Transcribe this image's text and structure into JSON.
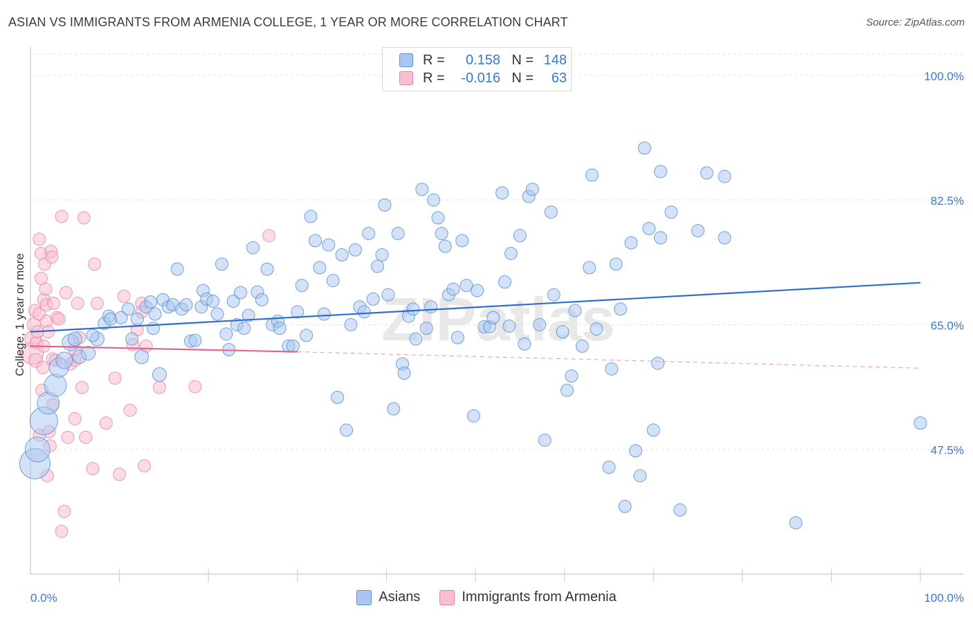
{
  "title": "ASIAN VS IMMIGRANTS FROM ARMENIA COLLEGE, 1 YEAR OR MORE CORRELATION CHART",
  "source": "Source: ZipAtlas.com",
  "watermark": "ZIPatlas",
  "colors": {
    "blue": "#5b8fd6",
    "blue_fill": "#a9c6f0",
    "blue_line": "#2f6fcc",
    "pink": "#e87fa3",
    "pink_fill": "#f7bfd0",
    "pink_line": "#e2658f",
    "tick_label": "#3a77cf",
    "grid": "#e3e3e3"
  },
  "legend": {
    "rows": [
      {
        "r_label": "R =",
        "r_value": "0.158",
        "n_label": "N =",
        "n_value": "148"
      },
      {
        "r_label": "R =",
        "r_value": "-0.016",
        "n_label": "N =",
        "n_value": "63"
      }
    ]
  },
  "chart_data": {
    "type": "scatter",
    "title": "ASIAN VS IMMIGRANTS FROM ARMENIA COLLEGE, 1 YEAR OR MORE CORRELATION CHART",
    "xlabel": "",
    "ylabel": "College, 1 year or more",
    "xlim": [
      0,
      100
    ],
    "ylim": [
      30,
      103
    ],
    "x_tick_labels": [
      "0.0%",
      "100.0%"
    ],
    "y_ticks": [
      47.5,
      65.0,
      82.5,
      100.0
    ],
    "y_tick_labels": [
      "47.5%",
      "65.0%",
      "82.5%",
      "100.0%"
    ],
    "grid": true,
    "legend_position": "top-center",
    "series": [
      {
        "name": "Asians",
        "R": 0.158,
        "N": 148,
        "trend": {
          "x": [
            0,
            100
          ],
          "y": [
            64.0,
            70.9
          ],
          "style": "solid"
        },
        "points": [
          [
            0.5,
            45.5,
            22
          ],
          [
            0.8,
            47.5,
            18
          ],
          [
            1.5,
            51.5,
            20
          ],
          [
            2.0,
            54.0,
            16
          ],
          [
            2.8,
            56.5,
            16
          ],
          [
            3.2,
            59.0,
            14
          ],
          [
            3.8,
            60.0,
            12
          ],
          [
            4.5,
            62.5,
            12
          ],
          [
            5.0,
            63.0,
            10
          ],
          [
            5.5,
            60.5,
            10
          ],
          [
            6.5,
            61.0,
            10
          ],
          [
            7.5,
            63.0,
            10
          ],
          [
            8.3,
            65.2,
            9
          ],
          [
            8.8,
            66.2,
            9
          ],
          [
            9.0,
            65.8,
            9
          ],
          [
            10.2,
            66.0,
            9
          ],
          [
            11.0,
            67.2,
            9
          ],
          [
            11.4,
            63.0,
            9
          ],
          [
            12.0,
            65.8,
            9
          ],
          [
            12.5,
            60.5,
            10
          ],
          [
            13.0,
            67.5,
            9
          ],
          [
            13.5,
            68.2,
            9
          ],
          [
            13.8,
            64.5,
            9
          ],
          [
            14.0,
            66.5,
            9
          ],
          [
            14.5,
            58.0,
            10
          ],
          [
            14.9,
            68.5,
            9
          ],
          [
            15.5,
            67.5,
            9
          ],
          [
            16.0,
            67.8,
            9
          ],
          [
            16.5,
            72.8,
            9
          ],
          [
            17.0,
            67.2,
            9
          ],
          [
            17.5,
            67.8,
            9
          ],
          [
            18.0,
            62.7,
            9
          ],
          [
            18.5,
            62.8,
            9
          ],
          [
            19.2,
            67.5,
            9
          ],
          [
            19.4,
            69.8,
            9
          ],
          [
            19.8,
            68.6,
            9
          ],
          [
            20.5,
            68.3,
            9
          ],
          [
            21.0,
            66.5,
            9
          ],
          [
            21.5,
            73.5,
            9
          ],
          [
            22.0,
            63.7,
            9
          ],
          [
            22.3,
            61.5,
            9
          ],
          [
            22.8,
            68.3,
            9
          ],
          [
            23.2,
            65.0,
            9
          ],
          [
            23.6,
            69.5,
            9
          ],
          [
            24.0,
            64.5,
            9
          ],
          [
            24.5,
            66.3,
            9
          ],
          [
            25.0,
            75.8,
            9
          ],
          [
            25.5,
            69.6,
            9
          ],
          [
            26.0,
            68.5,
            9
          ],
          [
            26.6,
            72.8,
            9
          ],
          [
            27.2,
            65.0,
            9
          ],
          [
            27.8,
            65.5,
            9
          ],
          [
            28.0,
            64.5,
            9
          ],
          [
            29.0,
            62.0,
            9
          ],
          [
            29.5,
            62.0,
            9
          ],
          [
            30.0,
            66.8,
            9
          ],
          [
            30.5,
            70.5,
            9
          ],
          [
            31.0,
            63.5,
            9
          ],
          [
            31.5,
            80.2,
            9
          ],
          [
            32.0,
            76.8,
            9
          ],
          [
            32.5,
            73.0,
            9
          ],
          [
            33.0,
            66.5,
            9
          ],
          [
            33.5,
            76.2,
            9
          ],
          [
            34.0,
            71.2,
            9
          ],
          [
            34.5,
            54.8,
            9
          ],
          [
            35.0,
            74.8,
            9
          ],
          [
            35.5,
            50.2,
            9
          ],
          [
            36.0,
            65.0,
            9
          ],
          [
            36.5,
            75.5,
            9
          ],
          [
            37.0,
            67.5,
            9
          ],
          [
            37.5,
            66.8,
            9
          ],
          [
            38.0,
            77.8,
            9
          ],
          [
            38.5,
            68.6,
            9
          ],
          [
            39.0,
            73.2,
            9
          ],
          [
            39.5,
            74.8,
            9
          ],
          [
            39.8,
            81.8,
            9
          ],
          [
            40.2,
            69.2,
            9
          ],
          [
            40.8,
            53.2,
            9
          ],
          [
            41.3,
            77.8,
            9
          ],
          [
            41.8,
            59.5,
            9
          ],
          [
            42.0,
            58.2,
            9
          ],
          [
            42.5,
            66.2,
            9
          ],
          [
            43.0,
            67.2,
            9
          ],
          [
            43.3,
            63.0,
            9
          ],
          [
            44.0,
            84.0,
            9
          ],
          [
            44.5,
            64.5,
            9
          ],
          [
            45.0,
            67.5,
            9
          ],
          [
            45.3,
            82.5,
            9
          ],
          [
            45.8,
            80.0,
            9
          ],
          [
            46.2,
            77.8,
            9
          ],
          [
            46.6,
            76.0,
            9
          ],
          [
            47.0,
            69.2,
            9
          ],
          [
            47.5,
            70.0,
            9
          ],
          [
            48.0,
            63.2,
            9
          ],
          [
            48.5,
            76.8,
            9
          ],
          [
            49.0,
            70.5,
            9
          ],
          [
            49.8,
            52.2,
            9
          ],
          [
            50.2,
            69.8,
            9
          ],
          [
            51.0,
            64.7,
            9
          ],
          [
            51.6,
            64.7,
            9
          ],
          [
            52.0,
            66.0,
            9
          ],
          [
            53.0,
            83.5,
            9
          ],
          [
            53.3,
            71.0,
            9
          ],
          [
            53.8,
            64.8,
            9
          ],
          [
            54.0,
            75.0,
            9
          ],
          [
            55.0,
            77.5,
            9
          ],
          [
            55.5,
            62.3,
            9
          ],
          [
            56.0,
            83.0,
            9
          ],
          [
            56.4,
            84.0,
            9
          ],
          [
            57.2,
            65.0,
            9
          ],
          [
            57.8,
            48.8,
            9
          ],
          [
            58.5,
            80.8,
            9
          ],
          [
            58.8,
            69.2,
            9
          ],
          [
            59.8,
            64.0,
            9
          ],
          [
            60.3,
            55.8,
            9
          ],
          [
            60.8,
            57.8,
            9
          ],
          [
            61.2,
            67.0,
            9
          ],
          [
            62.0,
            62.0,
            9
          ],
          [
            62.8,
            73.0,
            9
          ],
          [
            63.1,
            86.0,
            9
          ],
          [
            63.6,
            64.4,
            9
          ],
          [
            65.0,
            45.0,
            9
          ],
          [
            65.3,
            58.8,
            9
          ],
          [
            65.8,
            73.5,
            9
          ],
          [
            66.3,
            67.2,
            9
          ],
          [
            66.8,
            39.5,
            9
          ],
          [
            67.5,
            76.5,
            9
          ],
          [
            68.0,
            47.3,
            9
          ],
          [
            68.5,
            43.8,
            9
          ],
          [
            69.0,
            89.8,
            9
          ],
          [
            69.5,
            78.5,
            9
          ],
          [
            70.0,
            50.2,
            9
          ],
          [
            70.5,
            59.6,
            9
          ],
          [
            70.8,
            77.2,
            9
          ],
          [
            70.8,
            86.5,
            9
          ],
          [
            72.0,
            80.8,
            9
          ],
          [
            73.0,
            39.0,
            9
          ],
          [
            75.0,
            78.2,
            9
          ],
          [
            76.0,
            86.3,
            9
          ],
          [
            78.0,
            77.2,
            9
          ],
          [
            78.0,
            85.8,
            9
          ],
          [
            86.0,
            37.2,
            9
          ],
          [
            100.0,
            51.2,
            9
          ],
          [
            7.0,
            63.5,
            9
          ]
        ]
      },
      {
        "name": "Immigrants from Armenia",
        "R": -0.016,
        "N": 63,
        "trend": {
          "x": [
            0,
            30,
            100
          ],
          "y": [
            62.0,
            61.2,
            58.9
          ],
          "style": "solid-then-dashed"
        },
        "points": [
          [
            0.2,
            61.0,
            16
          ],
          [
            0.3,
            63.0,
            12
          ],
          [
            0.4,
            65.0,
            10
          ],
          [
            0.5,
            67.0,
            9
          ],
          [
            0.6,
            60.0,
            10
          ],
          [
            0.7,
            62.5,
            9
          ],
          [
            0.8,
            64.0,
            9
          ],
          [
            1.0,
            77.0,
            9
          ],
          [
            1.0,
            66.5,
            9
          ],
          [
            1.2,
            75.0,
            9
          ],
          [
            1.2,
            71.5,
            9
          ],
          [
            1.3,
            55.8,
            9
          ],
          [
            1.4,
            59.0,
            9
          ],
          [
            1.5,
            68.5,
            9
          ],
          [
            1.5,
            62.0,
            9
          ],
          [
            1.6,
            73.5,
            9
          ],
          [
            1.7,
            70.0,
            9
          ],
          [
            1.8,
            67.8,
            9
          ],
          [
            1.8,
            65.5,
            9
          ],
          [
            1.9,
            43.8,
            9
          ],
          [
            2.0,
            64.0,
            9
          ],
          [
            2.1,
            50.0,
            9
          ],
          [
            2.2,
            48.0,
            9
          ],
          [
            2.3,
            75.3,
            9
          ],
          [
            2.4,
            74.5,
            9
          ],
          [
            2.5,
            60.2,
            9
          ],
          [
            2.5,
            53.8,
            9
          ],
          [
            2.6,
            68.0,
            9
          ],
          [
            2.8,
            60.0,
            9
          ],
          [
            3.0,
            66.0,
            9
          ],
          [
            3.2,
            65.8,
            9
          ],
          [
            3.5,
            80.2,
            9
          ],
          [
            3.8,
            38.8,
            9
          ],
          [
            3.5,
            36.0,
            9
          ],
          [
            4.0,
            69.5,
            9
          ],
          [
            4.2,
            49.2,
            9
          ],
          [
            4.5,
            59.5,
            9
          ],
          [
            5.0,
            60.0,
            9
          ],
          [
            5.0,
            61.5,
            9
          ],
          [
            5.3,
            68.0,
            9
          ],
          [
            5.5,
            63.2,
            9
          ],
          [
            5.8,
            56.2,
            9
          ],
          [
            6.0,
            80.0,
            9
          ],
          [
            6.2,
            49.2,
            9
          ],
          [
            7.2,
            73.5,
            9
          ],
          [
            7.5,
            68.0,
            9
          ],
          [
            7.0,
            44.8,
            9
          ],
          [
            8.5,
            51.2,
            9
          ],
          [
            5.0,
            51.8,
            9
          ],
          [
            9.5,
            57.5,
            9
          ],
          [
            10.0,
            44.0,
            9
          ],
          [
            10.5,
            69.0,
            9
          ],
          [
            11.2,
            53.0,
            9
          ],
          [
            11.5,
            62.2,
            9
          ],
          [
            12.0,
            64.3,
            9
          ],
          [
            12.5,
            68.0,
            9
          ],
          [
            12.5,
            66.8,
            9
          ],
          [
            12.8,
            45.2,
            9
          ],
          [
            13.0,
            62.0,
            9
          ],
          [
            14.5,
            56.2,
            9
          ],
          [
            18.5,
            56.3,
            9
          ],
          [
            26.8,
            77.5,
            9
          ],
          [
            1.0,
            49.5,
            9
          ]
        ]
      }
    ]
  },
  "bottom_legend": [
    {
      "label": "Asians"
    },
    {
      "label": "Immigrants from Armenia"
    }
  ]
}
